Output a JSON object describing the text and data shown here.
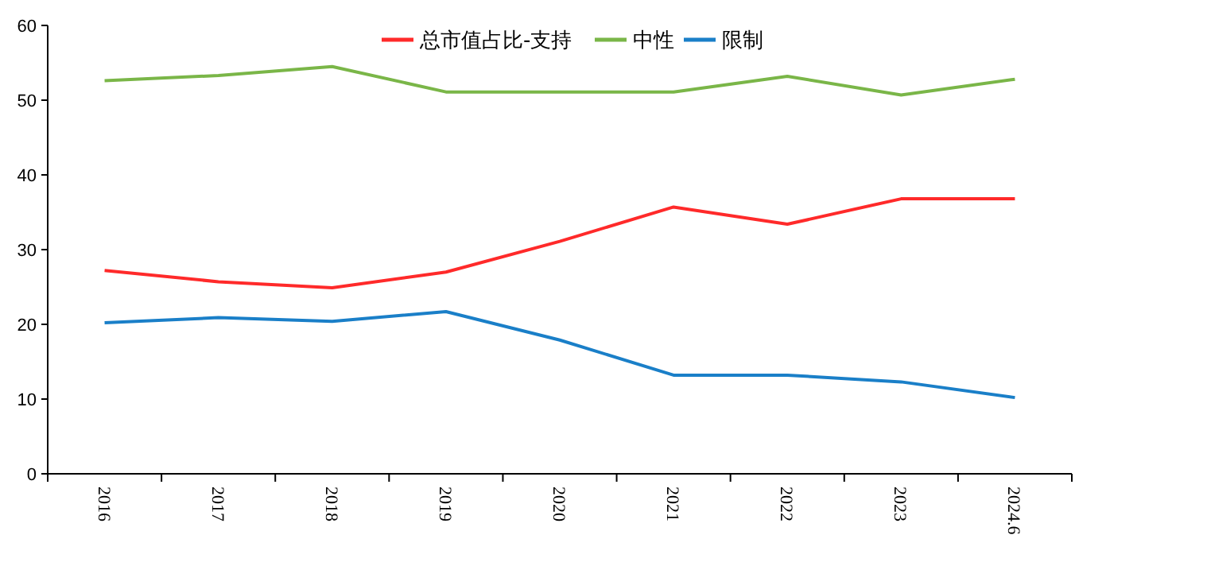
{
  "chart_data": {
    "type": "line",
    "categories": [
      "2016",
      "2017",
      "2018",
      "2019",
      "2020",
      "2021",
      "2022",
      "2023",
      "2024.6"
    ],
    "series": [
      {
        "name": "总市值占比-支持",
        "color": "#ff2a2a",
        "values": [
          27.2,
          25.7,
          24.9,
          27.0,
          31.1,
          35.7,
          33.4,
          36.8,
          36.8
        ]
      },
      {
        "name": "中性",
        "color": "#7ab648",
        "values": [
          52.6,
          53.3,
          54.5,
          51.1,
          51.1,
          51.1,
          53.2,
          50.7,
          52.8
        ]
      },
      {
        "name": "限制",
        "color": "#1a7fc8",
        "values": [
          20.2,
          20.9,
          20.4,
          21.7,
          17.9,
          13.2,
          13.2,
          12.3,
          10.2
        ]
      }
    ],
    "ylim": [
      0,
      60
    ],
    "yticks": [
      0,
      10,
      20,
      30,
      40,
      50,
      60
    ],
    "grid": false,
    "legend": "top",
    "marker": "none",
    "line_style": "solid"
  }
}
